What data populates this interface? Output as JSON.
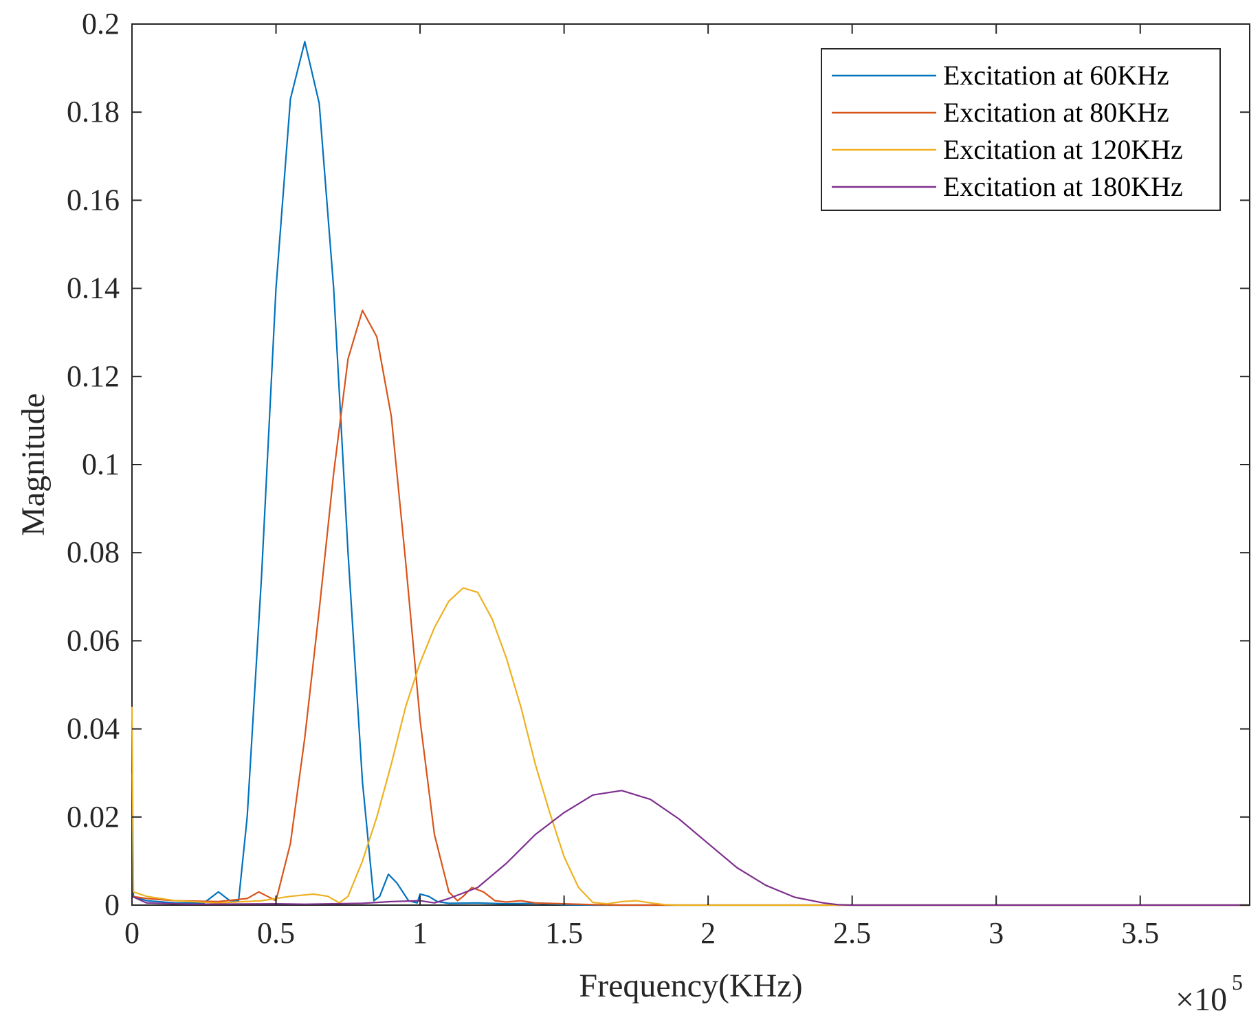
{
  "chart_data": {
    "type": "line",
    "xlabel": "Frequency(KHz)",
    "ylabel": "Magnitude",
    "x_exponent_label": "×10",
    "x_exponent_power": "5",
    "xlim": [
      0,
      3.88
    ],
    "ylim": [
      0,
      0.2
    ],
    "x_ticks": [
      0,
      0.5,
      1,
      1.5,
      2,
      2.5,
      3,
      3.5
    ],
    "x_tick_labels": [
      "0",
      "0.5",
      "1",
      "1.5",
      "2",
      "2.5",
      "3",
      "3.5"
    ],
    "y_ticks": [
      0,
      0.02,
      0.04,
      0.06,
      0.08,
      0.1,
      0.12,
      0.14,
      0.16,
      0.18,
      0.2
    ],
    "y_tick_labels": [
      "0",
      "0.02",
      "0.04",
      "0.06",
      "0.08",
      "0.1",
      "0.12",
      "0.14",
      "0.16",
      "0.18",
      "0.2"
    ],
    "grid": false,
    "legend_position": "top-right",
    "series": [
      {
        "name": "Excitation at 60KHz",
        "color": "#0072BD",
        "points": [
          [
            0,
            0.03
          ],
          [
            0.005,
            0.002
          ],
          [
            0.05,
            0.001
          ],
          [
            0.15,
            0.0005
          ],
          [
            0.25,
            0.0005
          ],
          [
            0.3,
            0.003
          ],
          [
            0.34,
            0.001
          ],
          [
            0.37,
            0.001
          ],
          [
            0.4,
            0.02
          ],
          [
            0.45,
            0.075
          ],
          [
            0.5,
            0.14
          ],
          [
            0.55,
            0.183
          ],
          [
            0.6,
            0.196
          ],
          [
            0.65,
            0.182
          ],
          [
            0.7,
            0.14
          ],
          [
            0.75,
            0.08
          ],
          [
            0.8,
            0.028
          ],
          [
            0.84,
            0.001
          ],
          [
            0.86,
            0.002
          ],
          [
            0.89,
            0.007
          ],
          [
            0.92,
            0.005
          ],
          [
            0.96,
            0.001
          ],
          [
            0.99,
            0.0005
          ],
          [
            1.0,
            0.0025
          ],
          [
            1.03,
            0.002
          ],
          [
            1.06,
            0.0008
          ],
          [
            1.1,
            0.0004
          ],
          [
            1.2,
            0.0005
          ],
          [
            1.3,
            0.0003
          ],
          [
            1.4,
            0.0004
          ],
          [
            1.5,
            0.0001
          ],
          [
            1.6,
            0
          ],
          [
            3.88,
            0
          ]
        ]
      },
      {
        "name": "Excitation at 80KHz",
        "color": "#D95319",
        "points": [
          [
            0,
            0.002
          ],
          [
            0.05,
            0.0015
          ],
          [
            0.15,
            0.001
          ],
          [
            0.3,
            0.0008
          ],
          [
            0.4,
            0.0015
          ],
          [
            0.44,
            0.003
          ],
          [
            0.47,
            0.002
          ],
          [
            0.5,
            0.001
          ],
          [
            0.55,
            0.014
          ],
          [
            0.6,
            0.038
          ],
          [
            0.65,
            0.067
          ],
          [
            0.7,
            0.098
          ],
          [
            0.75,
            0.124
          ],
          [
            0.8,
            0.135
          ],
          [
            0.85,
            0.129
          ],
          [
            0.9,
            0.111
          ],
          [
            0.95,
            0.078
          ],
          [
            1.0,
            0.042
          ],
          [
            1.05,
            0.016
          ],
          [
            1.1,
            0.003
          ],
          [
            1.13,
            0.001
          ],
          [
            1.15,
            0.002
          ],
          [
            1.18,
            0.004
          ],
          [
            1.22,
            0.003
          ],
          [
            1.26,
            0.001
          ],
          [
            1.3,
            0.0007
          ],
          [
            1.35,
            0.001
          ],
          [
            1.4,
            0.0005
          ],
          [
            1.5,
            0.0003
          ],
          [
            1.6,
            0.0001
          ],
          [
            1.7,
            0
          ],
          [
            3.88,
            0
          ]
        ]
      },
      {
        "name": "Excitation at 120KHz",
        "color": "#EDB120",
        "points": [
          [
            0,
            0.045
          ],
          [
            0.005,
            0.003
          ],
          [
            0.05,
            0.002
          ],
          [
            0.15,
            0.001
          ],
          [
            0.3,
            0.0005
          ],
          [
            0.45,
            0.001
          ],
          [
            0.55,
            0.002
          ],
          [
            0.63,
            0.0025
          ],
          [
            0.68,
            0.002
          ],
          [
            0.72,
            0.0005
          ],
          [
            0.75,
            0.002
          ],
          [
            0.8,
            0.01
          ],
          [
            0.85,
            0.02
          ],
          [
            0.9,
            0.032
          ],
          [
            0.95,
            0.045
          ],
          [
            1.0,
            0.055
          ],
          [
            1.05,
            0.063
          ],
          [
            1.1,
            0.069
          ],
          [
            1.15,
            0.072
          ],
          [
            1.2,
            0.071
          ],
          [
            1.25,
            0.065
          ],
          [
            1.3,
            0.056
          ],
          [
            1.35,
            0.045
          ],
          [
            1.4,
            0.032
          ],
          [
            1.45,
            0.021
          ],
          [
            1.5,
            0.011
          ],
          [
            1.55,
            0.004
          ],
          [
            1.6,
            0.0006
          ],
          [
            1.65,
            0.0003
          ],
          [
            1.7,
            0.0008
          ],
          [
            1.75,
            0.001
          ],
          [
            1.8,
            0.0005
          ],
          [
            1.85,
            0.0001
          ],
          [
            1.9,
            0
          ],
          [
            3.88,
            0
          ]
        ]
      },
      {
        "name": "Excitation at 180KHz",
        "color": "#7E2F8E",
        "points": [
          [
            0,
            0.002
          ],
          [
            0.05,
            0.0005
          ],
          [
            0.2,
            0.0002
          ],
          [
            0.5,
            0.0003
          ],
          [
            0.6,
            0.0002
          ],
          [
            0.8,
            0.0004
          ],
          [
            0.9,
            0.0008
          ],
          [
            1.0,
            0.001
          ],
          [
            1.05,
            0.0005
          ],
          [
            1.1,
            0.0015
          ],
          [
            1.2,
            0.004
          ],
          [
            1.3,
            0.0095
          ],
          [
            1.4,
            0.016
          ],
          [
            1.5,
            0.021
          ],
          [
            1.6,
            0.025
          ],
          [
            1.7,
            0.026
          ],
          [
            1.8,
            0.024
          ],
          [
            1.9,
            0.0195
          ],
          [
            2.0,
            0.014
          ],
          [
            2.1,
            0.0085
          ],
          [
            2.2,
            0.0045
          ],
          [
            2.3,
            0.0018
          ],
          [
            2.4,
            0.0005
          ],
          [
            2.45,
            0.0001
          ],
          [
            2.5,
            0
          ],
          [
            3.88,
            0
          ]
        ]
      }
    ]
  }
}
